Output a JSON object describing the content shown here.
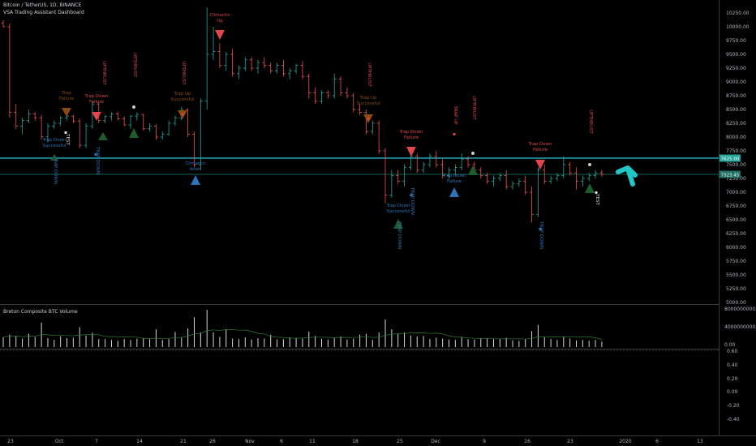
{
  "header": {
    "symbol_line": "Bitcoin / TetherUS, 1D, BINANCE",
    "indicator_line": "VSA Trading Assistant Dashboard"
  },
  "volume_panel": {
    "title": "Breton Composite BTC Volume"
  },
  "colors": {
    "background": "#000000",
    "up": "#26a69a",
    "down": "#ef5350",
    "grid_line": "#26c6da",
    "arrow": "#1fc7c7",
    "blue_triangle": "#2b74b8",
    "green_triangle": "#1e5c2e",
    "red_triangle": "#e0464b",
    "orange_triangle": "#8a4a10"
  },
  "price_axis": {
    "labels": [
      "10250.00",
      "10000.00",
      "9750.00",
      "9500.00",
      "9250.00",
      "9000.00",
      "8750.00",
      "8500.00",
      "8250.00",
      "8000.00",
      "7750.00",
      "7500.00",
      "7250.00",
      "7000.00",
      "6750.00",
      "6500.00",
      "6250.00",
      "6000.00",
      "5750.00",
      "5500.00",
      "5250.00",
      "5000.00"
    ],
    "current_price_tag": "7625.00",
    "second_price_tag": "7323.45"
  },
  "volume_axis": {
    "labels": [
      "8000000000.00",
      "4000000000.00",
      "0.00"
    ]
  },
  "osc_axis": {
    "labels": [
      "0.60",
      "0.40",
      "0.20",
      "0.00",
      "-0.20",
      "-0.40"
    ]
  },
  "time_axis": {
    "labels": [
      "23",
      "Oct",
      "7",
      "14",
      "21",
      "26",
      "Nov",
      "6",
      "11",
      "18",
      "25",
      "Dec",
      "9",
      "16",
      "23",
      "2020",
      "6",
      "13"
    ]
  },
  "annotations": {
    "test": "TEST",
    "trap_down_successful": [
      "Trap Down",
      "Successful"
    ],
    "trap_down_failure": [
      "Trap Down",
      "Failure"
    ],
    "trap_down_vertical": "TRAP DOWN",
    "upthrust_vertical": "UPTHRUST",
    "trap_up_vertical": "TRAP UP",
    "climactic_up": [
      "Climactic",
      "Up"
    ],
    "climactic_down": [
      "Climactic",
      "down"
    ],
    "trap_failure": [
      "Trap",
      "Failure"
    ],
    "trap_up_successful": [
      "Trap Up",
      "Successful"
    ],
    "trap_down": [
      "Trap Down",
      "Failure"
    ],
    "bear_trap": [
      "Trap Down",
      "Failure"
    ]
  },
  "chart_data": {
    "type": "candlestick",
    "ohlc": [
      [
        10070,
        10120,
        9990,
        10000
      ],
      [
        10000,
        10060,
        8350,
        8450
      ],
      [
        8450,
        8600,
        8150,
        8200
      ],
      [
        8200,
        8350,
        8050,
        8300
      ],
      [
        8300,
        8500,
        8250,
        8420
      ],
      [
        8420,
        8450,
        8300,
        8350
      ],
      [
        8350,
        8400,
        7950,
        8010
      ],
      [
        8010,
        8250,
        7900,
        8200
      ],
      [
        8200,
        8300,
        8150,
        8250
      ],
      [
        8250,
        8380,
        8200,
        8350
      ],
      [
        8350,
        8420,
        8300,
        8380
      ],
      [
        8380,
        8400,
        8250,
        8290
      ],
      [
        8290,
        8330,
        7800,
        7850
      ],
      [
        7850,
        8250,
        7800,
        8200
      ],
      [
        8200,
        8650,
        8150,
        8600
      ],
      [
        8600,
        8650,
        8250,
        8300
      ],
      [
        8300,
        8400,
        8250,
        8370
      ],
      [
        8370,
        8450,
        8300,
        8420
      ],
      [
        8420,
        8460,
        8300,
        8330
      ],
      [
        8330,
        8380,
        8200,
        8220
      ],
      [
        8220,
        8400,
        8150,
        8380
      ],
      [
        8380,
        8450,
        8300,
        8410
      ],
      [
        8410,
        8420,
        8120,
        8150
      ],
      [
        8150,
        8250,
        8100,
        8200
      ],
      [
        8200,
        8230,
        7950,
        8000
      ],
      [
        8000,
        8100,
        7950,
        8050
      ],
      [
        8050,
        8300,
        8020,
        8250
      ],
      [
        8250,
        8390,
        8200,
        8350
      ],
      [
        8350,
        8550,
        8300,
        8500
      ],
      [
        8500,
        8520,
        8000,
        8050
      ],
      [
        8050,
        8100,
        7450,
        7500
      ],
      [
        7500,
        8700,
        7400,
        8650
      ],
      [
        8650,
        10350,
        8500,
        9500
      ],
      [
        9500,
        10000,
        9400,
        9550
      ],
      [
        9550,
        9700,
        9250,
        9300
      ],
      [
        9300,
        9550,
        9200,
        9500
      ],
      [
        9500,
        9600,
        9100,
        9150
      ],
      [
        9150,
        9300,
        9050,
        9250
      ],
      [
        9250,
        9450,
        9200,
        9400
      ],
      [
        9400,
        9450,
        9200,
        9250
      ],
      [
        9250,
        9400,
        9150,
        9350
      ],
      [
        9350,
        9450,
        9250,
        9300
      ],
      [
        9300,
        9350,
        9150,
        9200
      ],
      [
        9200,
        9350,
        9150,
        9300
      ],
      [
        9300,
        9400,
        9100,
        9150
      ],
      [
        9150,
        9250,
        9050,
        9200
      ],
      [
        9200,
        9330,
        9150,
        9300
      ],
      [
        9300,
        9380,
        9050,
        9100
      ],
      [
        9100,
        9150,
        8700,
        8800
      ],
      [
        8800,
        8900,
        8600,
        8650
      ],
      [
        8650,
        8850,
        8600,
        8800
      ],
      [
        8800,
        8850,
        8700,
        8750
      ],
      [
        8750,
        9150,
        8700,
        9050
      ],
      [
        9050,
        9100,
        8750,
        8800
      ],
      [
        8800,
        8900,
        8700,
        8750
      ],
      [
        8750,
        8800,
        8450,
        8500
      ],
      [
        8500,
        8600,
        8400,
        8450
      ],
      [
        8450,
        8500,
        8050,
        8100
      ],
      [
        8100,
        8300,
        8050,
        8250
      ],
      [
        8250,
        8300,
        7700,
        7750
      ],
      [
        7750,
        7800,
        6800,
        6950
      ],
      [
        6950,
        7400,
        6900,
        7300
      ],
      [
        7300,
        7400,
        7150,
        7200
      ],
      [
        7200,
        7500,
        7100,
        7450
      ],
      [
        7450,
        7700,
        7400,
        7650
      ],
      [
        7650,
        7700,
        7350,
        7400
      ],
      [
        7400,
        7550,
        7350,
        7500
      ],
      [
        7500,
        7700,
        7450,
        7650
      ],
      [
        7650,
        7750,
        7450,
        7500
      ],
      [
        7500,
        7600,
        7250,
        7300
      ],
      [
        7300,
        7450,
        7250,
        7400
      ],
      [
        7400,
        7500,
        7300,
        7450
      ],
      [
        7450,
        7700,
        7400,
        7600
      ],
      [
        7600,
        7650,
        7450,
        7500
      ],
      [
        7500,
        7550,
        7350,
        7400
      ],
      [
        7400,
        7450,
        7250,
        7300
      ],
      [
        7300,
        7350,
        7150,
        7200
      ],
      [
        7200,
        7300,
        7100,
        7250
      ],
      [
        7250,
        7350,
        7200,
        7300
      ],
      [
        7300,
        7400,
        7050,
        7100
      ],
      [
        7100,
        7200,
        7050,
        7150
      ],
      [
        7150,
        7250,
        7100,
        7200
      ],
      [
        7200,
        7300,
        6950,
        7000
      ],
      [
        7000,
        7100,
        6450,
        6600
      ],
      [
        6600,
        7450,
        6550,
        7400
      ],
      [
        7400,
        7500,
        7150,
        7200
      ],
      [
        7200,
        7300,
        7150,
        7250
      ],
      [
        7250,
        7350,
        7200,
        7300
      ],
      [
        7300,
        7650,
        7250,
        7500
      ],
      [
        7500,
        7550,
        7300,
        7350
      ],
      [
        7350,
        7450,
        7050,
        7200
      ],
      [
        7200,
        7300,
        7100,
        7250
      ],
      [
        7250,
        7350,
        7200,
        7300
      ],
      [
        7300,
        7400,
        7250,
        7350
      ],
      [
        7350,
        7400,
        7280,
        7323
      ]
    ],
    "volume": [
      2.2,
      2.8,
      2.4,
      1.9,
      3.0,
      2.3,
      5.5,
      2.0,
      1.6,
      2.4,
      2.0,
      2.1,
      4.5,
      2.6,
      3.2,
      1.8,
      1.8,
      1.6,
      1.4,
      1.8,
      1.6,
      1.9,
      2.0,
      1.8,
      4.0,
      1.6,
      1.8,
      3.4,
      2.1,
      4.2,
      6.7,
      3.3,
      8.4,
      3.3,
      2.3,
      4.0,
      1.9,
      1.8,
      2.2,
      1.7,
      2.0,
      1.9,
      2.8,
      1.7,
      1.8,
      2.2,
      2.0,
      1.9,
      3.5,
      2.5,
      1.9,
      1.7,
      2.0,
      2.4,
      1.7,
      1.9,
      2.8,
      3.0,
      1.6,
      3.3,
      6.2,
      4.0,
      3.0,
      3.3,
      2.6,
      2.4,
      2.5,
      1.8,
      2.1,
      1.9,
      1.7,
      1.6,
      2.3,
      1.8,
      1.7,
      1.9,
      2.0,
      1.8,
      1.9,
      2.1,
      1.5,
      1.4,
      1.8,
      3.6,
      5.0,
      2.2,
      1.8,
      1.6,
      2.4,
      1.9,
      1.5,
      1.6,
      1.4,
      1.6,
      1.2
    ],
    "price_range": [
      5000,
      10250
    ]
  }
}
